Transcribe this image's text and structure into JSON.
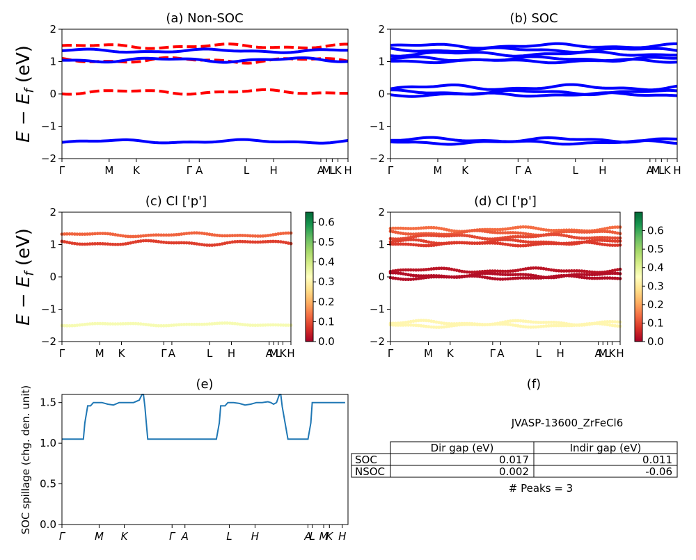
{
  "kpath_labels": [
    "Γ",
    "M",
    "K",
    "Γ",
    "A",
    "L",
    "H",
    "A",
    "M",
    "L",
    "K",
    "H"
  ],
  "kpath_x": [
    0,
    0.165,
    0.26,
    0.445,
    0.48,
    0.645,
    0.74,
    0.905,
    0.925,
    0.945,
    0.965,
    1.0
  ],
  "kpath_labels_e": [
    "Γ",
    "M",
    "K",
    "Γ",
    "A",
    "L",
    "H",
    "A",
    "L",
    "M",
    "K",
    "H"
  ],
  "kpath_x_e": [
    0,
    0.13,
    0.218,
    0.385,
    0.43,
    0.585,
    0.675,
    0.86,
    0.875,
    0.915,
    0.935,
    0.98
  ],
  "colors": {
    "nonsoc_up": "#ff0000",
    "nonsoc_dn": "#0000ff",
    "soc": "#0000ff",
    "spillage": "#1f77b4"
  },
  "chart_data": [
    {
      "id": "a",
      "type": "line",
      "title": "(a) Non-SOC",
      "ylabel": "$E-E_f$ (eV)",
      "ylim": [
        -2,
        2
      ],
      "yticks": [
        -2,
        -1,
        0,
        1,
        2
      ],
      "series": [
        {
          "style": "dashed",
          "color": "#ff0000",
          "base": 1.47,
          "amp": 0.05
        },
        {
          "style": "dashed",
          "color": "#ff0000",
          "base": 1.04,
          "amp": 0.06
        },
        {
          "style": "dashed",
          "color": "#ff0000",
          "base": 0.06,
          "amp": 0.05
        },
        {
          "style": "solid",
          "color": "#0000ff",
          "base": 1.33,
          "amp": 0.04
        },
        {
          "style": "solid",
          "color": "#0000ff",
          "base": 1.05,
          "amp": 0.05
        },
        {
          "style": "solid",
          "color": "#0000ff",
          "base": -1.47,
          "amp": 0.04
        }
      ]
    },
    {
      "id": "b",
      "type": "line",
      "title": "(b) SOC",
      "ylim": [
        -2,
        2
      ],
      "yticks": [
        -2,
        -1,
        0,
        1,
        2
      ],
      "series": [
        {
          "base": 1.48,
          "amp": 0.05
        },
        {
          "base": 1.36,
          "amp": 0.05
        },
        {
          "base": 1.24,
          "amp": 0.05
        },
        {
          "base": 1.08,
          "amp": 0.05
        },
        {
          "base": 1.02,
          "amp": 0.04
        },
        {
          "base": 0.2,
          "amp": 0.06
        },
        {
          "base": 0.05,
          "amp": 0.05
        },
        {
          "base": -0.02,
          "amp": 0.04
        },
        {
          "base": -1.42,
          "amp": 0.05
        },
        {
          "base": -1.5,
          "amp": 0.04
        }
      ]
    },
    {
      "id": "c",
      "type": "scatter",
      "title": "(c)  Cl ['p']",
      "ylabel": "$E-E_f$ (eV)",
      "ylim": [
        -2,
        2
      ],
      "yticks": [
        -2,
        -1,
        0,
        1,
        2
      ],
      "colorbar": {
        "min": 0.0,
        "max": 0.65,
        "ticks": [
          0.0,
          0.1,
          0.2,
          0.3,
          0.4,
          0.5,
          0.6
        ]
      },
      "series": [
        {
          "base": 1.3,
          "amp": 0.04,
          "weight": 0.12
        },
        {
          "base": 1.05,
          "amp": 0.05,
          "weight": 0.08
        },
        {
          "base": -1.47,
          "amp": 0.03,
          "weight": 0.34
        }
      ]
    },
    {
      "id": "d",
      "type": "scatter",
      "title": "(d) Cl ['p']",
      "ylim": [
        -2,
        2
      ],
      "yticks": [
        -2,
        -1,
        0,
        1,
        2
      ],
      "colorbar": {
        "min": 0.0,
        "max": 0.7,
        "ticks": [
          0.0,
          0.1,
          0.2,
          0.3,
          0.4,
          0.5,
          0.6
        ]
      },
      "series": [
        {
          "base": 1.47,
          "amp": 0.05,
          "weight": 0.14
        },
        {
          "base": 1.36,
          "amp": 0.05,
          "weight": 0.12
        },
        {
          "base": 1.24,
          "amp": 0.05,
          "weight": 0.1
        },
        {
          "base": 1.08,
          "amp": 0.05,
          "weight": 0.09
        },
        {
          "base": 1.02,
          "amp": 0.04,
          "weight": 0.08
        },
        {
          "base": 0.2,
          "amp": 0.05,
          "weight": 0.03
        },
        {
          "base": 0.05,
          "amp": 0.05,
          "weight": 0.02
        },
        {
          "base": -0.02,
          "amp": 0.04,
          "weight": 0.02
        },
        {
          "base": -1.42,
          "amp": 0.05,
          "weight": 0.33
        },
        {
          "base": -1.5,
          "amp": 0.04,
          "weight": 0.33
        }
      ]
    },
    {
      "id": "e",
      "type": "line",
      "title": "(e)",
      "ylabel": "SOC spillage (chg. den. unit)",
      "ylim": [
        0.0,
        1.6
      ],
      "yticks": [
        0.0,
        0.5,
        1.0,
        1.5
      ],
      "x": [
        0,
        0.075,
        0.08,
        0.09,
        0.1,
        0.11,
        0.12,
        0.14,
        0.16,
        0.18,
        0.2,
        0.22,
        0.25,
        0.27,
        0.28,
        0.285,
        0.29,
        0.295,
        0.3,
        0.305,
        0.31,
        0.32,
        0.35,
        0.4,
        0.45,
        0.5,
        0.54,
        0.55,
        0.555,
        0.56,
        0.57,
        0.58,
        0.6,
        0.62,
        0.64,
        0.66,
        0.68,
        0.7,
        0.72,
        0.73,
        0.74,
        0.75,
        0.76,
        0.765,
        0.77,
        0.78,
        0.79,
        0.8,
        0.82,
        0.84,
        0.86,
        0.87,
        0.875,
        0.88,
        0.9,
        0.92,
        0.94,
        0.96,
        0.98,
        0.99
      ],
      "y": [
        1.05,
        1.05,
        1.25,
        1.46,
        1.46,
        1.5,
        1.5,
        1.5,
        1.48,
        1.47,
        1.5,
        1.5,
        1.5,
        1.53,
        1.6,
        1.6,
        1.45,
        1.25,
        1.05,
        1.05,
        1.05,
        1.05,
        1.05,
        1.05,
        1.05,
        1.05,
        1.05,
        1.25,
        1.46,
        1.46,
        1.46,
        1.5,
        1.5,
        1.49,
        1.47,
        1.48,
        1.5,
        1.5,
        1.51,
        1.5,
        1.48,
        1.5,
        1.6,
        1.6,
        1.45,
        1.25,
        1.05,
        1.05,
        1.05,
        1.05,
        1.05,
        1.25,
        1.5,
        1.5,
        1.5,
        1.5,
        1.5,
        1.5,
        1.5,
        1.5
      ]
    }
  ],
  "panel_f": {
    "title": "(f)",
    "material": "JVASP-13600_ZrFeCl6",
    "table": {
      "header": [
        "",
        "Dir gap (eV)",
        "Indir gap (eV)"
      ],
      "rows": [
        [
          "SOC",
          "0.017",
          "0.011"
        ],
        [
          "NSOC",
          "0.002",
          "-0.06"
        ]
      ]
    },
    "peaks": "# Peaks = 3"
  }
}
